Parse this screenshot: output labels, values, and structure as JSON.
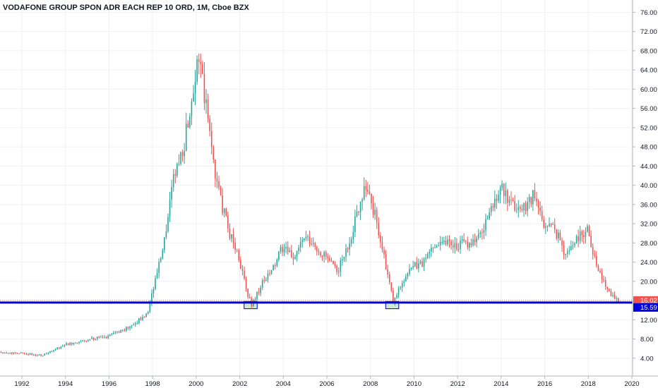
{
  "chart_data": {
    "type": "candlestick",
    "title": "VODAFONE GROUP SPON ADR EACH REP 10 ORD, 1M, Cboe BZX",
    "xlim": [
      1991.0,
      2020.0
    ],
    "ylim": [
      1.0,
      77.5
    ],
    "x_ticks": [
      "1992",
      "1994",
      "1996",
      "1998",
      "2000",
      "2002",
      "2004",
      "2006",
      "2008",
      "2010",
      "2012",
      "2014",
      "2016",
      "2018",
      "2020"
    ],
    "y_ticks": [
      "4.00",
      "8.00",
      "12.00",
      "16.00",
      "20.00",
      "24.00",
      "28.00",
      "32.00",
      "36.00",
      "40.00",
      "44.00",
      "48.00",
      "52.00",
      "56.00",
      "60.00",
      "64.00",
      "68.00",
      "72.00",
      "76.00"
    ],
    "grid": true,
    "up_color": "#26a69a",
    "down_color": "#ef5350",
    "price_path": [
      [
        1991.0,
        5.3
      ],
      [
        1992.0,
        5.0
      ],
      [
        1993.0,
        4.6
      ],
      [
        1994.0,
        6.8
      ],
      [
        1995.0,
        7.8
      ],
      [
        1996.0,
        8.6
      ],
      [
        1997.0,
        10.5
      ],
      [
        1997.8,
        13.5
      ],
      [
        1998.0,
        17.5
      ],
      [
        1998.5,
        26.0
      ],
      [
        1999.0,
        41.0
      ],
      [
        1999.5,
        49.0
      ],
      [
        1999.9,
        60.0
      ],
      [
        2000.1,
        68.0
      ],
      [
        2000.5,
        56.0
      ],
      [
        2001.0,
        40.0
      ],
      [
        2001.5,
        31.0
      ],
      [
        2002.0,
        25.0
      ],
      [
        2002.4,
        17.0
      ],
      [
        2002.6,
        15.2
      ],
      [
        2003.0,
        19.0
      ],
      [
        2003.5,
        22.0
      ],
      [
        2004.0,
        27.0
      ],
      [
        2004.5,
        25.0
      ],
      [
        2005.0,
        29.0
      ],
      [
        2005.5,
        27.0
      ],
      [
        2006.0,
        25.0
      ],
      [
        2006.5,
        22.0
      ],
      [
        2007.0,
        27.0
      ],
      [
        2007.8,
        40.5
      ],
      [
        2008.3,
        33.0
      ],
      [
        2008.7,
        24.0
      ],
      [
        2009.1,
        15.5
      ],
      [
        2009.5,
        20.0
      ],
      [
        2010.0,
        23.0
      ],
      [
        2010.5,
        24.0
      ],
      [
        2011.0,
        28.0
      ],
      [
        2011.5,
        28.5
      ],
      [
        2012.0,
        27.5
      ],
      [
        2012.5,
        28.0
      ],
      [
        2013.0,
        29.0
      ],
      [
        2013.6,
        35.0
      ],
      [
        2014.0,
        40.0
      ],
      [
        2014.4,
        36.0
      ],
      [
        2015.0,
        35.0
      ],
      [
        2015.5,
        38.0
      ],
      [
        2016.0,
        32.0
      ],
      [
        2016.5,
        31.0
      ],
      [
        2017.0,
        25.5
      ],
      [
        2017.5,
        29.0
      ],
      [
        2018.0,
        31.0
      ],
      [
        2018.5,
        22.0
      ],
      [
        2019.0,
        18.0
      ],
      [
        2019.4,
        16.0
      ]
    ],
    "support_lines": [
      {
        "price": 16.02,
        "color": "#ef5350",
        "label": "16.02"
      },
      {
        "price": 15.59,
        "color": "#0000d8",
        "label": "15.59"
      }
    ],
    "support_zones": [
      {
        "x0": 2002.2,
        "x1": 2002.8,
        "y0": 14.3,
        "y1": 15.8
      },
      {
        "x0": 2008.7,
        "x1": 2009.3,
        "y0": 14.3,
        "y1": 15.8
      }
    ],
    "zone_fill": "#c8e6c9",
    "zone_stroke": "#0000d8"
  }
}
